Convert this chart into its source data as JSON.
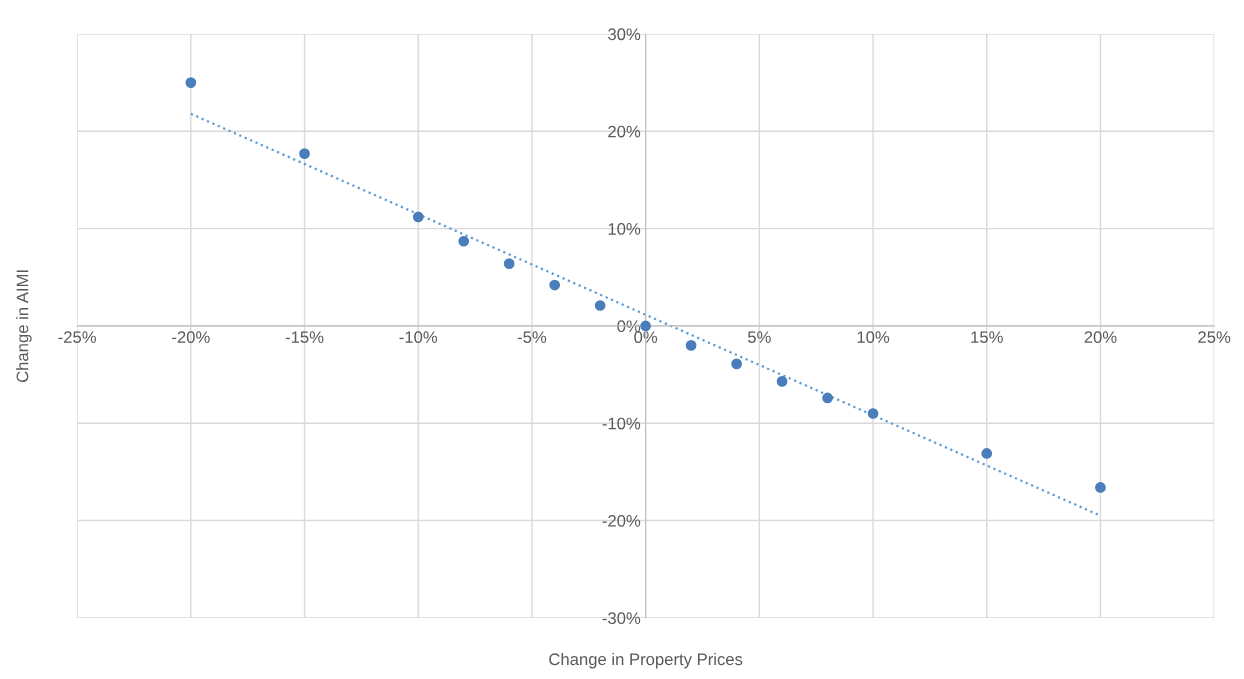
{
  "chart_data": {
    "type": "scatter",
    "xlabel": "Change in Property Prices",
    "ylabel": "Change in AIMI",
    "xlim": [
      -25,
      25
    ],
    "ylim": [
      -30,
      30
    ],
    "xticks": [
      {
        "value": -25,
        "label": "-25%"
      },
      {
        "value": -20,
        "label": "-20%"
      },
      {
        "value": -15,
        "label": "-15%"
      },
      {
        "value": -10,
        "label": "-10%"
      },
      {
        "value": -5,
        "label": "-5%"
      },
      {
        "value": 0,
        "label": "0%"
      },
      {
        "value": 5,
        "label": "5%"
      },
      {
        "value": 10,
        "label": "10%"
      },
      {
        "value": 15,
        "label": "15%"
      },
      {
        "value": 20,
        "label": "20%"
      },
      {
        "value": 25,
        "label": "25%"
      }
    ],
    "yticks": [
      {
        "value": -30,
        "label": "-30%"
      },
      {
        "value": -20,
        "label": "-20%"
      },
      {
        "value": -10,
        "label": "-10%"
      },
      {
        "value": 0,
        "label": "0%"
      },
      {
        "value": 10,
        "label": "10%"
      },
      {
        "value": 20,
        "label": "20%"
      },
      {
        "value": 30,
        "label": "30%"
      }
    ],
    "grid": true,
    "series": [
      {
        "marker": "circle",
        "color": "#4a7ebb",
        "x": [
          -20,
          -15,
          -10,
          -8,
          -6,
          -4,
          -2,
          0,
          2,
          4,
          6,
          8,
          10,
          15,
          20
        ],
        "values": [
          25.0,
          17.7,
          11.2,
          8.7,
          6.4,
          4.2,
          2.1,
          0,
          -2.0,
          -3.9,
          -5.7,
          -7.4,
          -9.0,
          -13.1,
          -16.6
        ]
      },
      {
        "type": "line",
        "marker": "none",
        "color": "#5b9bd5",
        "line_style": "dotted",
        "x": [
          -20,
          20
        ],
        "values": [
          21.8,
          -19.5
        ]
      }
    ]
  }
}
